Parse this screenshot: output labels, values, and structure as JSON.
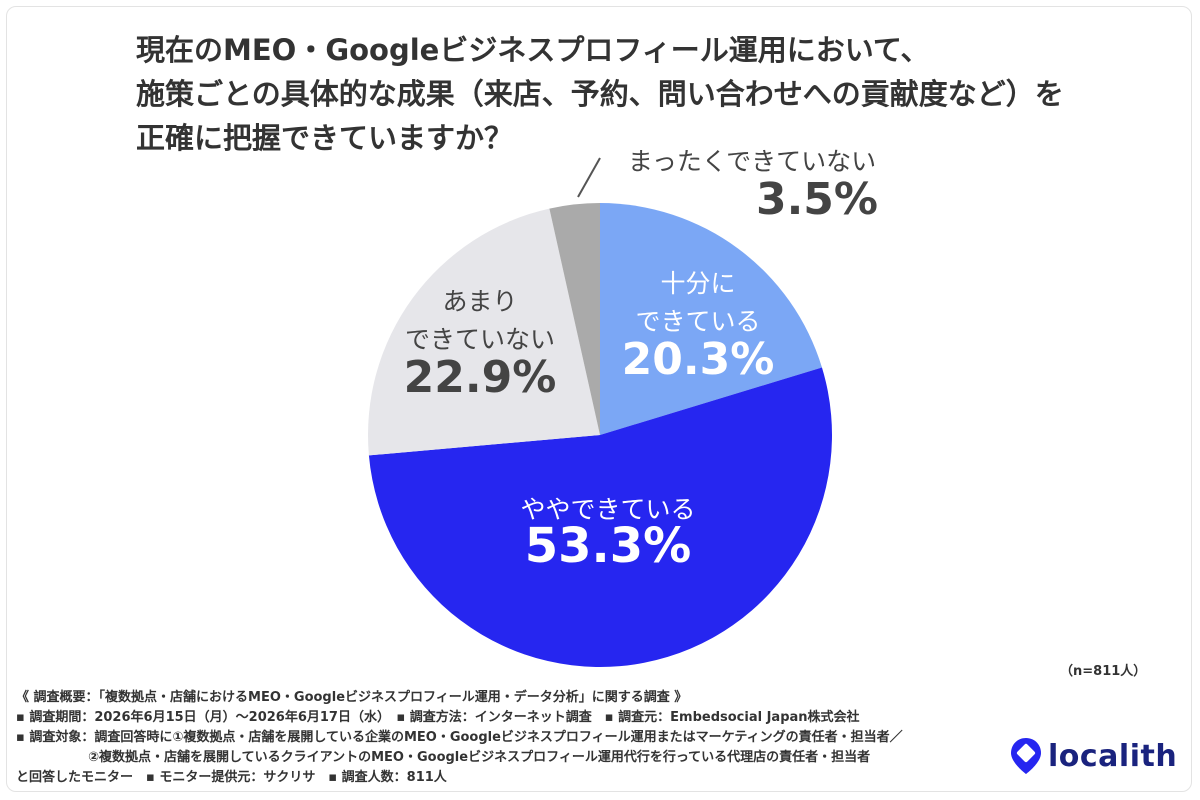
{
  "title_lines": [
    "現在のMEO・Googleビジネスプロフィール運用において、",
    "施策ごとの具体的な成果（来店、予約、問い合わせへの貢献度など）を",
    "正確に把握できていますか？"
  ],
  "chart_data": {
    "type": "pie",
    "title": "現在のMEO・Googleビジネスプロフィール運用において、施策ごとの具体的な成果（来店、予約、問い合わせへの貢献度など）を正確に把握できていますか？",
    "slices": [
      {
        "label_lines": [
          "十分に",
          "できている"
        ],
        "value": 20.3,
        "value_label": "20.3%",
        "color": "#7ba7f5"
      },
      {
        "label_lines": [
          "ややできている"
        ],
        "value": 53.3,
        "value_label": "53.3%",
        "color": "#2626f0"
      },
      {
        "label_lines": [
          "あまり",
          "できていない"
        ],
        "value": 22.9,
        "value_label": "22.9%",
        "color": "#e6e6ea"
      },
      {
        "label_lines": [
          "まったくできていない"
        ],
        "value": 3.5,
        "value_label": "3.5%",
        "color": "#aaaaaa"
      }
    ]
  },
  "sample_size": "（n=811人）",
  "footer": {
    "line1": "《 調査概要：「複数拠点・店舗におけるMEO・Googleビジネスプロフィール運用・データ分析」に関する調査 》",
    "line2": "▪ 調査期間：2026年6月15日（月）～2026年6月17日（水）　▪ 調査方法：インターネット調査　▪ 調査元：Embedsocial Japan株式会社",
    "line3": "▪ 調査対象：調査回答時に①複数拠点・店舗を展開している企業のMEO・Googleビジネスプロフィール運用またはマーケティングの責任者・担当者／",
    "line4": "②複数拠点・店舗を展開しているクライアントのMEO・Googleビジネスプロフィール運用代行を行っている代理店の責任者・担当者",
    "line5": "と回答したモニター　▪ モニター提供元：サクリサ　▪ 調査人数：811人"
  },
  "logo": {
    "text": "localith",
    "icon": "location-pin-icon",
    "color": "#1a237e",
    "accent": "#2626f0"
  }
}
